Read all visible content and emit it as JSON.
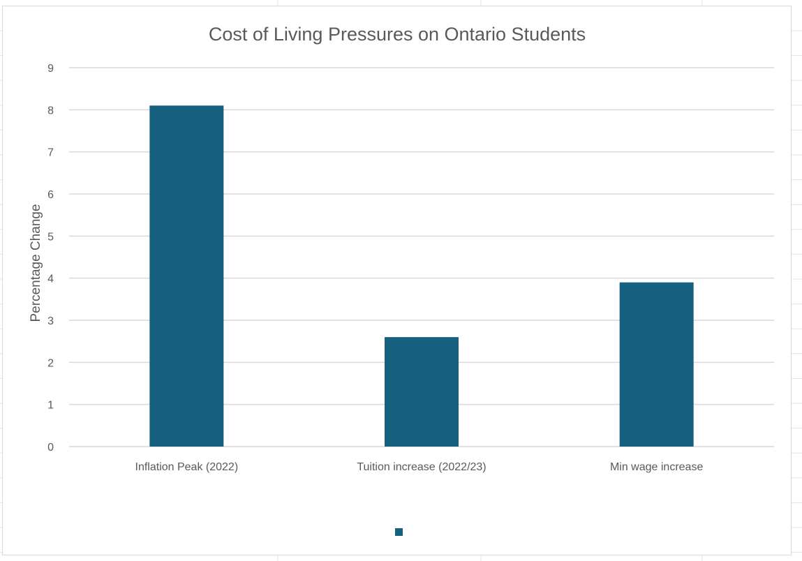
{
  "chart_data": {
    "type": "bar",
    "title": "Cost of Living Pressures on Ontario Students",
    "xlabel": "",
    "ylabel": "Percentage Change",
    "categories": [
      "Inflation Peak (2022)",
      "Tuition increase (2022/23)",
      "Min wage increase"
    ],
    "series": [
      {
        "values": [
          8.1,
          2.6,
          3.9
        ]
      }
    ],
    "ylim": [
      0,
      9
    ],
    "yticks": [
      "0",
      "1",
      "2",
      "3",
      "4",
      "5",
      "6",
      "7",
      "8",
      "9"
    ],
    "grid": true,
    "legend": "bottom",
    "colors": {
      "bar": "#17607f",
      "grid": "#d9d9d9",
      "text": "#595959"
    }
  }
}
